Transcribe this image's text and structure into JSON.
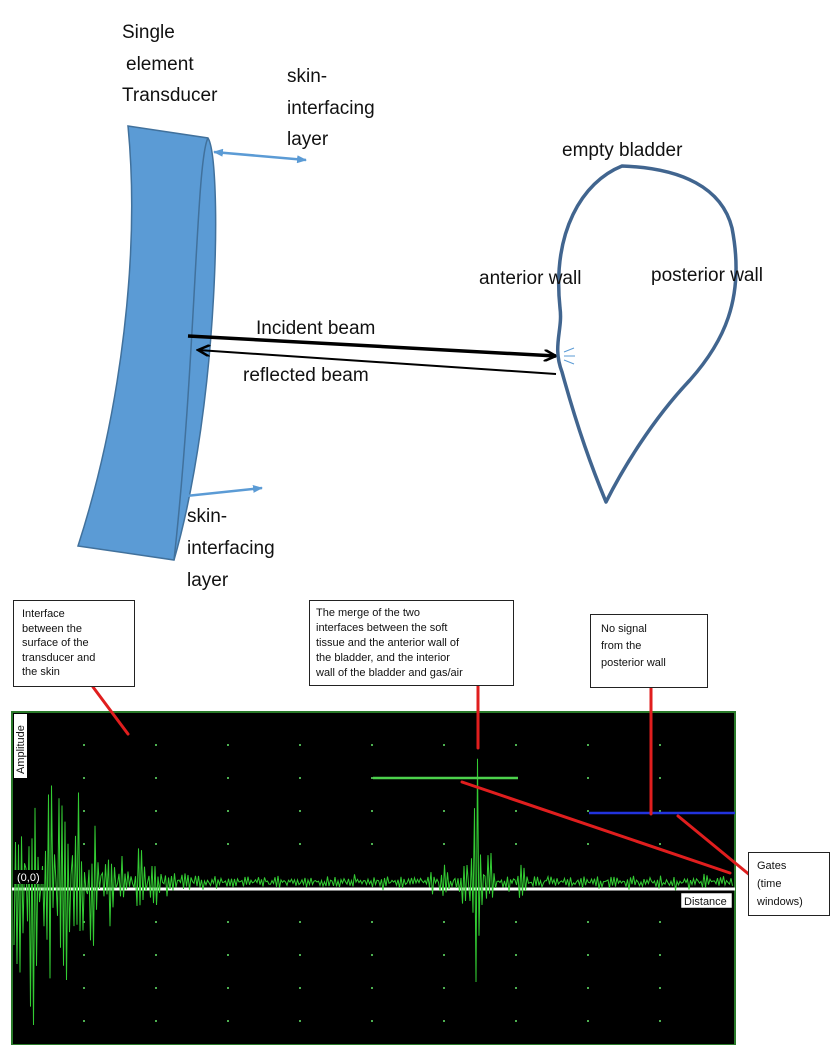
{
  "diagram": {
    "transducer_label": [
      "Single",
      "element",
      "Transducer"
    ],
    "skin_layer_top": [
      "skin-",
      "interfacing",
      "layer"
    ],
    "skin_layer_bottom": [
      "skin-",
      "interfacing",
      "layer"
    ],
    "incident_beam": "Incident beam",
    "reflected_beam": "reflected beam",
    "bladder_label": "empty bladder",
    "anterior_wall": "anterior wall",
    "posterior_wall": "posterior wall",
    "colors": {
      "transducer_fill": "#5b9bd5",
      "transducer_stroke": "#41719c",
      "arrow": "#5b9bd5",
      "bladder_outline": "#41658f",
      "beam": "#000000"
    }
  },
  "scope": {
    "amplitude_label": "Amplitude",
    "origin_label": "(0,0)",
    "distance_label": "Distance",
    "colors": {
      "background": "#000000",
      "signal": "#33cc33",
      "gate_green": "#4cd14c",
      "gate_blue": "#2233dd",
      "pointer": "#e01e1e",
      "axis": "#ffffff"
    }
  },
  "annotations": {
    "interface_skin": [
      "Interface",
      "between the",
      "surface of the",
      "transducer and",
      "the skin"
    ],
    "merge": [
      "The merge of the two",
      "interfaces between the soft",
      "tissue and the anterior wall of",
      "the bladder, and the interior",
      "wall of the bladder and gas/air"
    ],
    "no_signal": [
      "No signal",
      "from the",
      "posterior wall"
    ],
    "gates": [
      "Gates",
      "(time",
      "windows)"
    ]
  }
}
